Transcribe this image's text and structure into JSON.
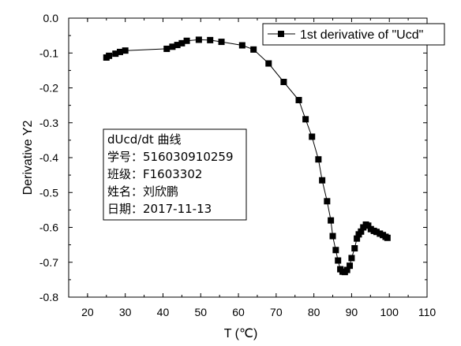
{
  "chart_data": {
    "type": "line",
    "xlabel": "T (℃)",
    "ylabel": "Derivative Y2",
    "xlim": [
      15,
      110
    ],
    "ylim": [
      -0.8,
      0.0
    ],
    "xticks": [
      20,
      30,
      40,
      50,
      60,
      70,
      80,
      90,
      100,
      110
    ],
    "yticks": [
      0.0,
      -0.1,
      -0.2,
      -0.3,
      -0.4,
      -0.5,
      -0.6,
      -0.7,
      -0.8
    ],
    "xtick_labels": [
      "20",
      "30",
      "40",
      "50",
      "60",
      "70",
      "80",
      "90",
      "100",
      "110"
    ],
    "ytick_labels": [
      "0.0",
      "-0.1",
      "-0.2",
      "-0.3",
      "-0.4",
      "-0.5",
      "-0.6",
      "-0.7",
      "-0.8"
    ],
    "grid": false,
    "legend_position": "top-right",
    "series": [
      {
        "name": "1st derivative of \"Ucd\"",
        "color": "#000000",
        "marker": "square",
        "x": [
          25.0,
          25.7,
          27.4,
          28.6,
          30.0,
          41.0,
          42.5,
          43.8,
          45.0,
          46.3,
          49.5,
          52.5,
          55.5,
          61.0,
          64.0,
          68.0,
          72.0,
          76.0,
          77.8,
          79.5,
          81.2,
          82.2,
          83.5,
          84.5,
          85.0,
          85.8,
          86.4,
          87.0,
          87.6,
          88.2,
          88.8,
          89.5,
          90.0,
          90.8,
          91.4,
          91.9,
          92.5,
          93.1,
          93.8,
          94.4,
          95.1,
          95.9,
          96.6,
          97.5,
          98.3,
          99.0,
          99.5
        ],
        "y": [
          -0.113,
          -0.108,
          -0.102,
          -0.097,
          -0.093,
          -0.088,
          -0.082,
          -0.077,
          -0.072,
          -0.065,
          -0.062,
          -0.063,
          -0.068,
          -0.078,
          -0.09,
          -0.13,
          -0.183,
          -0.235,
          -0.29,
          -0.34,
          -0.405,
          -0.465,
          -0.525,
          -0.58,
          -0.625,
          -0.665,
          -0.695,
          -0.72,
          -0.727,
          -0.728,
          -0.722,
          -0.71,
          -0.688,
          -0.66,
          -0.632,
          -0.62,
          -0.612,
          -0.6,
          -0.592,
          -0.595,
          -0.605,
          -0.61,
          -0.613,
          -0.618,
          -0.622,
          -0.627,
          -0.63
        ]
      }
    ]
  },
  "legend": {
    "label": "1st derivative of \"Ucd\""
  },
  "info_box": {
    "line1": "dUcd/dt 曲线",
    "line2": "学号：516030910259",
    "line3": "班级：F1603302",
    "line4": "姓名：刘欣鹏",
    "line5": "日期：2017-11-13"
  }
}
